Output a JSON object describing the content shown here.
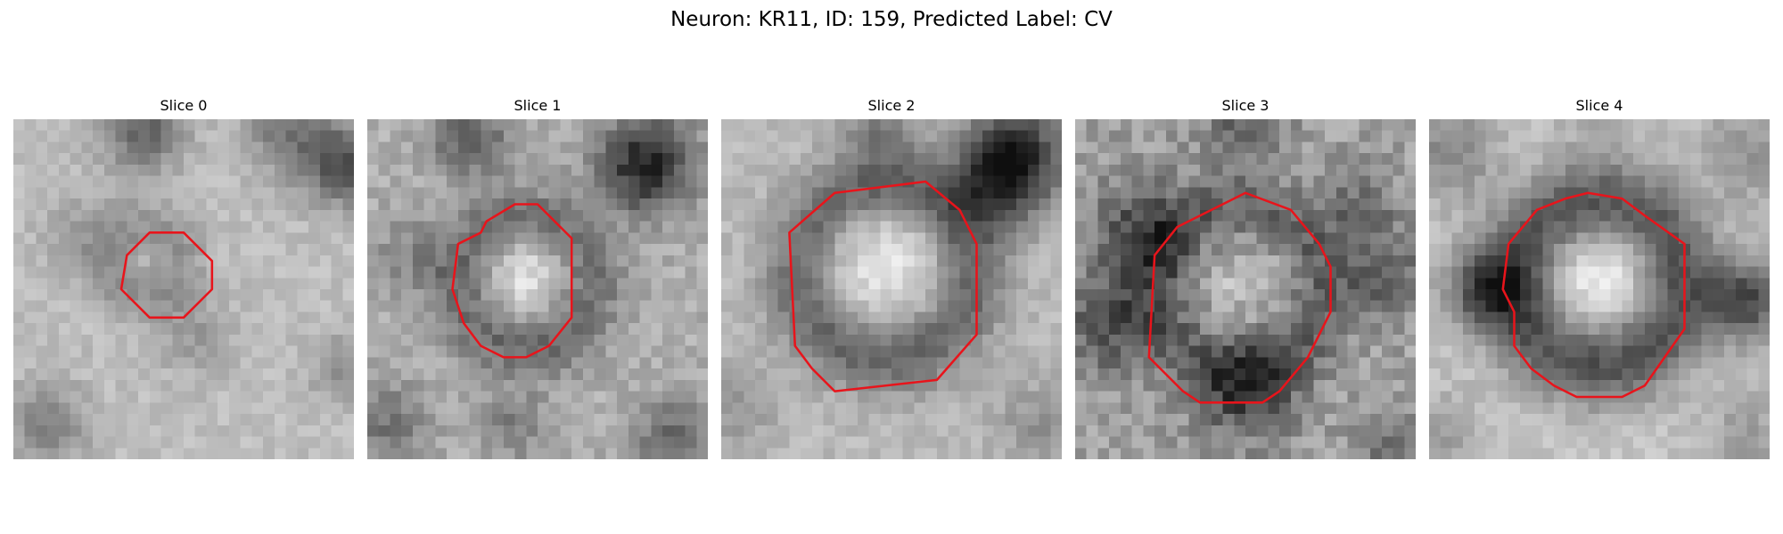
{
  "figure": {
    "title": "Neuron: KR11, ID: 159, Predicted Label: CV"
  },
  "panels": [
    {
      "title": "Slice 0",
      "image": "grayscale-microscopy-slice",
      "contour_color": "#e8141b"
    },
    {
      "title": "Slice 1",
      "image": "grayscale-microscopy-slice",
      "contour_color": "#e8141b"
    },
    {
      "title": "Slice 2",
      "image": "grayscale-microscopy-slice",
      "contour_color": "#e8141b"
    },
    {
      "title": "Slice 3",
      "image": "grayscale-microscopy-slice",
      "contour_color": "#e8141b"
    },
    {
      "title": "Slice 4",
      "image": "grayscale-microscopy-slice",
      "contour_color": "#e8141b"
    }
  ]
}
